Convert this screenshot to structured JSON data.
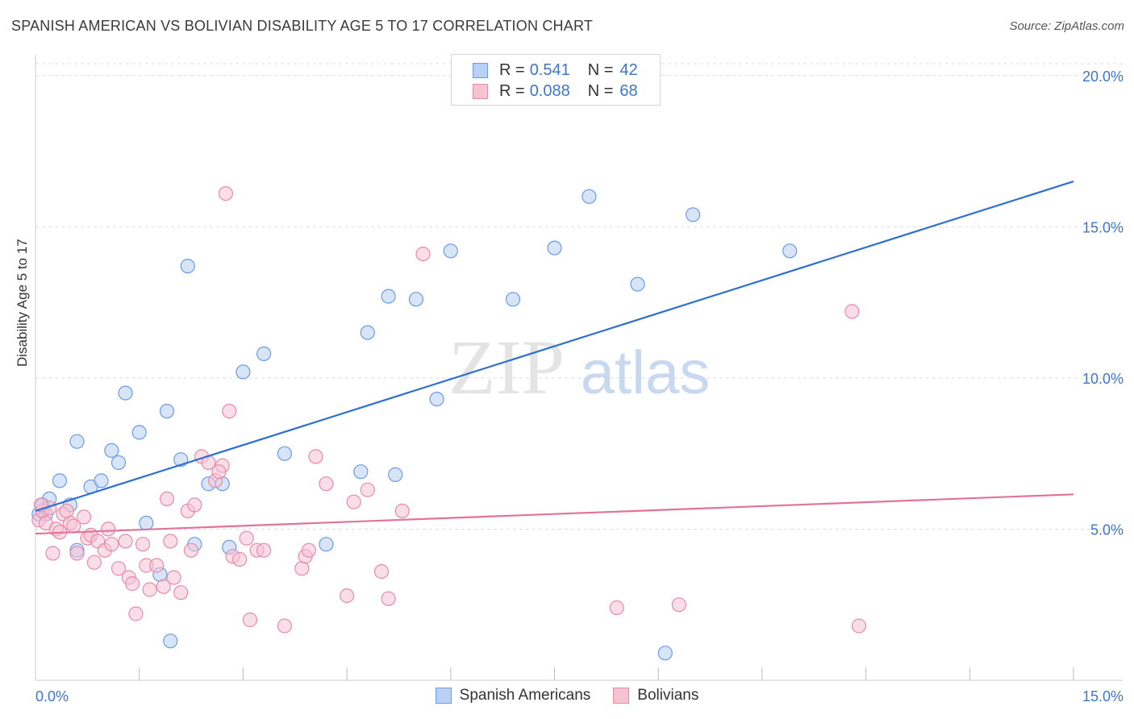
{
  "header": {
    "title": "SPANISH AMERICAN VS BOLIVIAN DISABILITY AGE 5 TO 17 CORRELATION CHART",
    "source": "Source: ZipAtlas.com"
  },
  "watermark": {
    "zip": "ZIP",
    "atlas": "atlas"
  },
  "legend": {
    "r_label": "R =",
    "n_label": "N =",
    "rows": [
      {
        "r": "0.541",
        "n": "42"
      },
      {
        "r": "0.088",
        "n": "68"
      }
    ]
  },
  "chart_data": {
    "type": "scatter",
    "title": "SPANISH AMERICAN VS BOLIVIAN DISABILITY AGE 5 TO 17 CORRELATION CHART",
    "ylabel": "Disability Age 5 to 17",
    "xlabel": "",
    "xlim": [
      0,
      15
    ],
    "ylim": [
      0,
      20.5
    ],
    "x_tick_labels": [
      {
        "value": 0,
        "label": "0.0%"
      },
      {
        "value": 15,
        "label": "15.0%"
      }
    ],
    "y_tick_labels": [
      {
        "value": 5,
        "label": "5.0%"
      },
      {
        "value": 10,
        "label": "10.0%"
      },
      {
        "value": 15,
        "label": "15.0%"
      },
      {
        "value": 20,
        "label": "20.0%"
      }
    ],
    "x_minor_ticks": [
      1.5,
      3.0,
      4.5,
      6.0,
      7.5,
      9.0,
      10.5,
      12.0,
      13.5,
      15.0
    ],
    "grid": true,
    "legend_position": "top-center",
    "series": [
      {
        "name": "Spanish Americans",
        "color": "#6a9be8",
        "fill": "#b8d0f3",
        "r": 0.541,
        "n": 42,
        "trend": {
          "x": [
            0,
            15
          ],
          "y": [
            5.6,
            16.5
          ]
        },
        "points": [
          [
            0.05,
            5.5
          ],
          [
            0.1,
            5.8
          ],
          [
            0.15,
            5.5
          ],
          [
            0.2,
            6.0
          ],
          [
            0.35,
            6.6
          ],
          [
            0.5,
            5.8
          ],
          [
            0.6,
            4.3
          ],
          [
            0.6,
            7.9
          ],
          [
            0.8,
            6.4
          ],
          [
            0.95,
            6.6
          ],
          [
            1.1,
            7.6
          ],
          [
            1.2,
            7.2
          ],
          [
            1.3,
            9.5
          ],
          [
            1.5,
            8.2
          ],
          [
            1.6,
            5.2
          ],
          [
            1.8,
            3.5
          ],
          [
            1.9,
            8.9
          ],
          [
            1.95,
            1.3
          ],
          [
            2.1,
            7.3
          ],
          [
            2.2,
            13.7
          ],
          [
            2.3,
            4.5
          ],
          [
            2.5,
            6.5
          ],
          [
            2.7,
            6.5
          ],
          [
            2.8,
            4.4
          ],
          [
            3.0,
            10.2
          ],
          [
            3.3,
            10.8
          ],
          [
            3.6,
            7.5
          ],
          [
            4.2,
            4.5
          ],
          [
            4.7,
            6.9
          ],
          [
            4.8,
            11.5
          ],
          [
            5.1,
            12.7
          ],
          [
            5.2,
            6.8
          ],
          [
            5.5,
            12.6
          ],
          [
            5.8,
            9.3
          ],
          [
            6.0,
            14.2
          ],
          [
            6.9,
            12.6
          ],
          [
            7.5,
            14.3
          ],
          [
            8.0,
            16.0
          ],
          [
            8.7,
            13.1
          ],
          [
            9.5,
            15.4
          ],
          [
            10.9,
            14.2
          ],
          [
            9.1,
            0.9
          ]
        ]
      },
      {
        "name": "Bolivians",
        "color": "#e88aa8",
        "fill": "#f6c3d3",
        "r": 0.088,
        "n": 68,
        "trend": {
          "x": [
            0,
            15
          ],
          "y": [
            4.85,
            6.15
          ]
        },
        "points": [
          [
            0.05,
            5.3
          ],
          [
            0.1,
            5.6
          ],
          [
            0.15,
            5.2
          ],
          [
            0.2,
            5.7
          ],
          [
            0.3,
            5.0
          ],
          [
            0.35,
            4.9
          ],
          [
            0.4,
            5.5
          ],
          [
            0.5,
            5.2
          ],
          [
            0.55,
            5.1
          ],
          [
            0.6,
            4.2
          ],
          [
            0.7,
            5.4
          ],
          [
            0.75,
            4.7
          ],
          [
            0.8,
            4.8
          ],
          [
            0.85,
            3.9
          ],
          [
            0.9,
            4.6
          ],
          [
            1.0,
            4.3
          ],
          [
            1.1,
            4.5
          ],
          [
            1.2,
            3.7
          ],
          [
            1.3,
            4.6
          ],
          [
            1.35,
            3.4
          ],
          [
            1.4,
            3.2
          ],
          [
            1.45,
            2.2
          ],
          [
            1.55,
            4.5
          ],
          [
            1.6,
            3.8
          ],
          [
            1.65,
            3.0
          ],
          [
            1.75,
            3.8
          ],
          [
            1.85,
            3.1
          ],
          [
            1.9,
            6.0
          ],
          [
            1.95,
            4.6
          ],
          [
            2.0,
            3.4
          ],
          [
            2.1,
            2.9
          ],
          [
            2.2,
            5.6
          ],
          [
            2.25,
            4.3
          ],
          [
            2.3,
            5.8
          ],
          [
            2.4,
            7.4
          ],
          [
            2.5,
            7.2
          ],
          [
            2.6,
            6.6
          ],
          [
            2.7,
            7.1
          ],
          [
            2.75,
            16.1
          ],
          [
            2.8,
            8.9
          ],
          [
            2.85,
            4.1
          ],
          [
            2.95,
            4.0
          ],
          [
            3.05,
            4.7
          ],
          [
            3.1,
            2.0
          ],
          [
            3.2,
            4.3
          ],
          [
            3.3,
            4.3
          ],
          [
            3.6,
            1.8
          ],
          [
            3.85,
            3.7
          ],
          [
            3.9,
            4.1
          ],
          [
            3.95,
            4.3
          ],
          [
            4.05,
            7.4
          ],
          [
            4.2,
            6.5
          ],
          [
            4.5,
            2.8
          ],
          [
            4.6,
            5.9
          ],
          [
            4.8,
            6.3
          ],
          [
            5.0,
            3.6
          ],
          [
            5.1,
            2.7
          ],
          [
            5.3,
            5.6
          ],
          [
            5.6,
            14.1
          ],
          [
            8.4,
            2.4
          ],
          [
            9.3,
            2.5
          ],
          [
            11.8,
            12.2
          ],
          [
            11.9,
            1.8
          ],
          [
            0.08,
            5.8
          ],
          [
            0.25,
            4.2
          ],
          [
            0.45,
            5.6
          ],
          [
            1.05,
            5.0
          ],
          [
            2.65,
            6.9
          ]
        ]
      }
    ]
  }
}
